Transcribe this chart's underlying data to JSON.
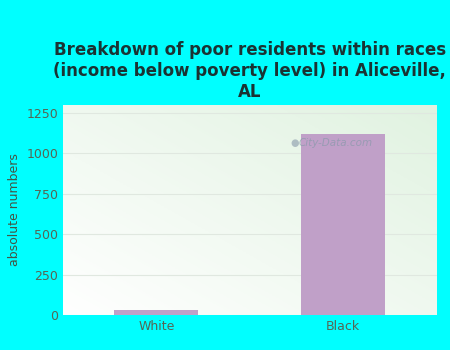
{
  "categories": [
    "White",
    "Black"
  ],
  "values": [
    30,
    1120
  ],
  "bar_colors": [
    "#c0a0c8",
    "#c0a0c8"
  ],
  "title": "Breakdown of poor residents within races\n(income below poverty level) in Aliceville,\nAL",
  "ylabel": "absolute numbers",
  "ylim": [
    0,
    1300
  ],
  "yticks": [
    0,
    250,
    500,
    750,
    1000,
    1250
  ],
  "background_color": "#00ffff",
  "plot_bg_color_topleft": "#e8f5e0",
  "plot_bg_color_bottomright": "#f8fff8",
  "title_fontsize": 12,
  "axis_label_fontsize": 9,
  "tick_fontsize": 9,
  "bar_width": 0.45,
  "watermark": "City-Data.com",
  "grid_color": "#e0e8e0",
  "tick_color": "#556655",
  "label_color": "#445544"
}
